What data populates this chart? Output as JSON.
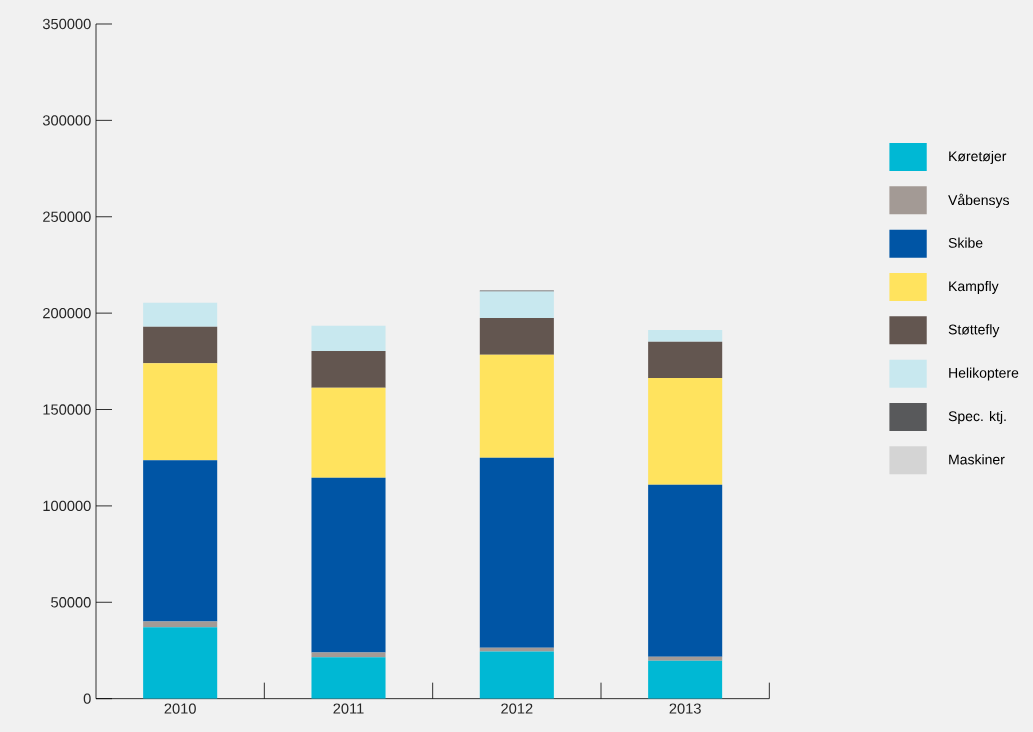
{
  "chart_data": {
    "type": "bar",
    "stacked": true,
    "categories": [
      "2010",
      "2011",
      "2012",
      "2013"
    ],
    "series": [
      {
        "name": "Køretøjer",
        "color": "#00b8d4",
        "values": [
          37000,
          21500,
          24400,
          19700
        ]
      },
      {
        "name": "Våbensys",
        "color": "#a39a95",
        "values": [
          3000,
          2500,
          2000,
          2100
        ]
      },
      {
        "name": "Skibe",
        "color": "#0055a5",
        "values": [
          83700,
          90600,
          98600,
          89200
        ]
      },
      {
        "name": "Kampfly",
        "color": "#ffe35e",
        "values": [
          50300,
          46700,
          53400,
          55400
        ]
      },
      {
        "name": "Støttefly",
        "color": "#635650",
        "values": [
          19000,
          19100,
          19100,
          18700
        ]
      },
      {
        "name": "Helikoptere",
        "color": "#c8e8ef",
        "values": [
          12400,
          13000,
          13700,
          6200
        ]
      },
      {
        "name": "Spec. ktj.",
        "color": "#58595b",
        "values": [
          0,
          0,
          500,
          0
        ]
      },
      {
        "name": "Maskiner",
        "color": "#d4d4d4",
        "values": [
          0,
          0,
          0,
          0
        ]
      }
    ],
    "ylim": [
      0,
      350000
    ],
    "yticks": [
      0,
      50000,
      100000,
      150000,
      200000,
      250000,
      300000,
      350000
    ],
    "grid": false,
    "legend": "right"
  }
}
